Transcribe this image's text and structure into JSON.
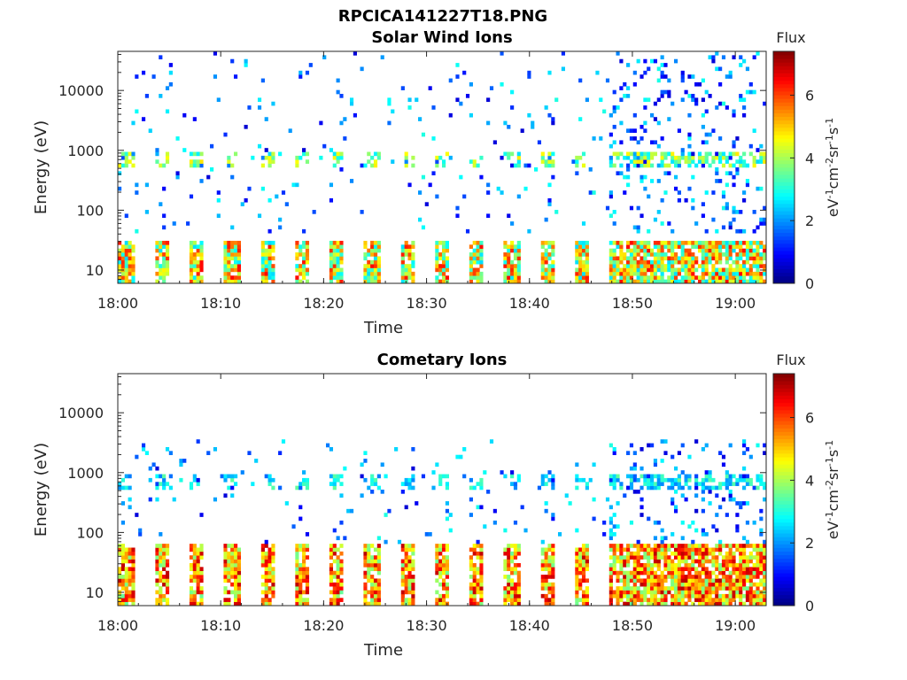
{
  "figure": {
    "title": "RPCICA141227T18.PNG"
  },
  "chart_data": [
    {
      "type": "heatmap",
      "title": "Solar Wind Ions",
      "xlabel": "Time",
      "ylabel": "Energy (eV)",
      "x_ticks": [
        "18:00",
        "18:10",
        "18:20",
        "18:30",
        "18:40",
        "18:50",
        "19:00"
      ],
      "x_range_minutes": [
        0,
        63
      ],
      "y_scale": "log",
      "y_ticks": [
        10,
        100,
        1000,
        10000
      ],
      "y_range": [
        6,
        45000
      ],
      "colorbar": {
        "label": "Flux",
        "unit_label": "eV-1cm-2sr-1s-1",
        "ticks": [
          0,
          2,
          4,
          6
        ],
        "range": [
          0,
          7.4
        ],
        "colormap": "jet"
      },
      "ion_bands": [
        {
          "name": "low",
          "e_min": 6,
          "e_max": 30,
          "flux_min": 2.5,
          "flux_max": 6.5
        },
        {
          "name": "mid",
          "e_min": 500,
          "e_max": 900,
          "flux_min": 2.5,
          "flux_max": 4.8
        },
        {
          "name": "sparse",
          "e_min": 40,
          "e_max": 45000,
          "flux_min": 0.6,
          "flux_max": 3.0
        }
      ]
    },
    {
      "type": "heatmap",
      "title": "Cometary Ions",
      "xlabel": "Time",
      "ylabel": "Energy (eV)",
      "x_ticks": [
        "18:00",
        "18:10",
        "18:20",
        "18:30",
        "18:40",
        "18:50",
        "19:00"
      ],
      "x_range_minutes": [
        0,
        63
      ],
      "y_scale": "log",
      "y_ticks": [
        10,
        100,
        1000,
        10000
      ],
      "y_range": [
        6,
        45000
      ],
      "colorbar": {
        "label": "Flux",
        "unit_label": "eV-1cm-2sr-1s-1",
        "ticks": [
          0,
          2,
          4,
          6
        ],
        "range": [
          0,
          7.4
        ],
        "colormap": "jet"
      },
      "ion_bands": [
        {
          "name": "low",
          "e_min": 6,
          "e_max": 60,
          "flux_min": 3.5,
          "flux_max": 7.0
        },
        {
          "name": "mid",
          "e_min": 500,
          "e_max": 900,
          "flux_min": 1.8,
          "flux_max": 3.5
        },
        {
          "name": "sparse",
          "e_min": 60,
          "e_max": 3500,
          "flux_min": 0.6,
          "flux_max": 3.0
        }
      ]
    }
  ]
}
